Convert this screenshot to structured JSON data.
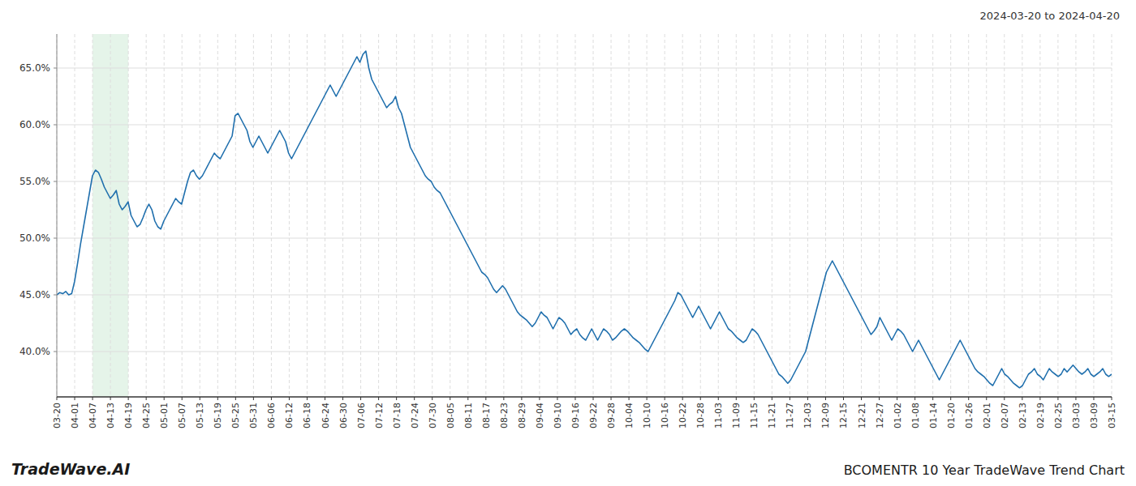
{
  "chart_data": {
    "type": "line",
    "title": "BCOMENTR 10 Year TradeWave Trend Chart",
    "subtitle": "2024-03-20 to 2024-04-20",
    "annotations": [
      "TradeWave.AI"
    ],
    "color": "#1f6fad",
    "grid": true,
    "ylim": [
      36,
      68
    ],
    "yticks": [
      {
        "value": 40.0,
        "label": "40.0%"
      },
      {
        "value": 45.0,
        "label": "45.0%"
      },
      {
        "value": 50.0,
        "label": "50.0%"
      },
      {
        "value": 55.0,
        "label": "55.0%"
      },
      {
        "value": 60.0,
        "label": "60.0%"
      },
      {
        "value": 65.0,
        "label": "65.0%"
      }
    ],
    "xticks": [
      "03-20",
      "04-01",
      "04-07",
      "04-13",
      "04-19",
      "04-25",
      "05-01",
      "05-07",
      "05-13",
      "05-19",
      "05-25",
      "05-31",
      "06-06",
      "06-12",
      "06-18",
      "06-24",
      "06-30",
      "07-06",
      "07-12",
      "07-18",
      "07-24",
      "07-30",
      "08-05",
      "08-11",
      "08-17",
      "08-23",
      "08-29",
      "09-04",
      "09-10",
      "09-16",
      "09-22",
      "09-28",
      "10-04",
      "10-10",
      "10-16",
      "10-22",
      "10-28",
      "11-03",
      "11-09",
      "11-15",
      "11-21",
      "11-27",
      "12-03",
      "12-09",
      "12-15",
      "12-21",
      "12-27",
      "01-02",
      "01-08",
      "01-14",
      "01-20",
      "01-26",
      "02-01",
      "02-07",
      "02-13",
      "02-19",
      "02-25",
      "03-03",
      "03-09",
      "03-15"
    ],
    "highlight": {
      "from": "04-07",
      "to": "04-19",
      "color": "#d4edda"
    },
    "values": [
      45.0,
      45.2,
      45.1,
      45.3,
      45.0,
      45.1,
      46.2,
      47.8,
      49.5,
      51.0,
      52.5,
      54.0,
      55.5,
      56.0,
      55.8,
      55.2,
      54.5,
      54.0,
      53.5,
      53.8,
      54.2,
      53.0,
      52.5,
      52.8,
      53.2,
      52.0,
      51.5,
      51.0,
      51.2,
      51.8,
      52.5,
      53.0,
      52.5,
      51.5,
      51.0,
      50.8,
      51.5,
      52.0,
      52.5,
      53.0,
      53.5,
      53.2,
      53.0,
      54.0,
      55.0,
      55.8,
      56.0,
      55.5,
      55.2,
      55.5,
      56.0,
      56.5,
      57.0,
      57.5,
      57.2,
      57.0,
      57.5,
      58.0,
      58.5,
      59.0,
      60.8,
      61.0,
      60.5,
      60.0,
      59.5,
      58.5,
      58.0,
      58.5,
      59.0,
      58.5,
      58.0,
      57.5,
      58.0,
      58.5,
      59.0,
      59.5,
      59.0,
      58.5,
      57.5,
      57.0,
      57.5,
      58.0,
      58.5,
      59.0,
      59.5,
      60.0,
      60.5,
      61.0,
      61.5,
      62.0,
      62.5,
      63.0,
      63.5,
      63.0,
      62.5,
      63.0,
      63.5,
      64.0,
      64.5,
      65.0,
      65.5,
      66.0,
      65.5,
      66.2,
      66.5,
      65.0,
      64.0,
      63.5,
      63.0,
      62.5,
      62.0,
      61.5,
      61.8,
      62.0,
      62.5,
      61.5,
      61.0,
      60.0,
      59.0,
      58.0,
      57.5,
      57.0,
      56.5,
      56.0,
      55.5,
      55.2,
      55.0,
      54.5,
      54.2,
      54.0,
      53.5,
      53.0,
      52.5,
      52.0,
      51.5,
      51.0,
      50.5,
      50.0,
      49.5,
      49.0,
      48.5,
      48.0,
      47.5,
      47.0,
      46.8,
      46.5,
      46.0,
      45.5,
      45.2,
      45.5,
      45.8,
      45.5,
      45.0,
      44.5,
      44.0,
      43.5,
      43.2,
      43.0,
      42.8,
      42.5,
      42.2,
      42.5,
      43.0,
      43.5,
      43.2,
      43.0,
      42.5,
      42.0,
      42.5,
      43.0,
      42.8,
      42.5,
      42.0,
      41.5,
      41.8,
      42.0,
      41.5,
      41.2,
      41.0,
      41.5,
      42.0,
      41.5,
      41.0,
      41.5,
      42.0,
      41.8,
      41.5,
      41.0,
      41.2,
      41.5,
      41.8,
      42.0,
      41.8,
      41.5,
      41.2,
      41.0,
      40.8,
      40.5,
      40.2,
      40.0,
      40.5,
      41.0,
      41.5,
      42.0,
      42.5,
      43.0,
      43.5,
      44.0,
      44.5,
      45.2,
      45.0,
      44.5,
      44.0,
      43.5,
      43.0,
      43.5,
      44.0,
      43.5,
      43.0,
      42.5,
      42.0,
      42.5,
      43.0,
      43.5,
      43.0,
      42.5,
      42.0,
      41.8,
      41.5,
      41.2,
      41.0,
      40.8,
      41.0,
      41.5,
      42.0,
      41.8,
      41.5,
      41.0,
      40.5,
      40.0,
      39.5,
      39.0,
      38.5,
      38.0,
      37.8,
      37.5,
      37.2,
      37.5,
      38.0,
      38.5,
      39.0,
      39.5,
      40.0,
      41.0,
      42.0,
      43.0,
      44.0,
      45.0,
      46.0,
      47.0,
      47.5,
      48.0,
      47.5,
      47.0,
      46.5,
      46.0,
      45.5,
      45.0,
      44.5,
      44.0,
      43.5,
      43.0,
      42.5,
      42.0,
      41.5,
      41.8,
      42.2,
      43.0,
      42.5,
      42.0,
      41.5,
      41.0,
      41.5,
      42.0,
      41.8,
      41.5,
      41.0,
      40.5,
      40.0,
      40.5,
      41.0,
      40.5,
      40.0,
      39.5,
      39.0,
      38.5,
      38.0,
      37.5,
      38.0,
      38.5,
      39.0,
      39.5,
      40.0,
      40.5,
      41.0,
      40.5,
      40.0,
      39.5,
      39.0,
      38.5,
      38.2,
      38.0,
      37.8,
      37.5,
      37.2,
      37.0,
      37.5,
      38.0,
      38.5,
      38.0,
      37.8,
      37.5,
      37.2,
      37.0,
      36.8,
      37.0,
      37.5,
      38.0,
      38.2,
      38.5,
      38.0,
      37.8,
      37.5,
      38.0,
      38.5,
      38.2,
      38.0,
      37.8,
      38.0,
      38.5,
      38.2,
      38.5,
      38.8,
      38.5,
      38.2,
      38.0,
      38.2,
      38.5,
      38.0,
      37.8,
      38.0,
      38.2,
      38.5,
      38.0,
      37.8,
      38.0
    ]
  }
}
